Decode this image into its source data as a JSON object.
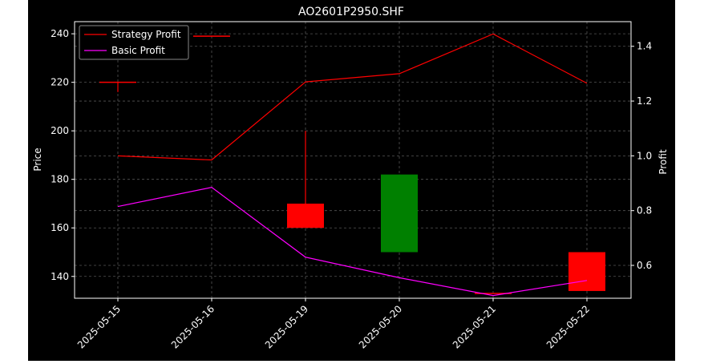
{
  "chart_data": {
    "type": "candlestick",
    "title": "AO2601P2950.SHF",
    "x_tick_labels": [
      "2025-05-15",
      "2025-05-16",
      "2025-05-19",
      "2025-05-20",
      "2025-05-21",
      "2025-05-22"
    ],
    "left_axis": {
      "label": "Price",
      "range": [
        131,
        245
      ],
      "ticks": [
        140,
        160,
        180,
        200,
        220,
        240
      ]
    },
    "right_axis": {
      "label": "Profit",
      "range": [
        0.48,
        1.49
      ],
      "ticks": [
        0.6,
        0.8,
        1.0,
        1.2,
        1.4
      ]
    },
    "grid": true,
    "legend_position": "upper-left",
    "candles": [
      {
        "x": "2025-05-15",
        "open": 220,
        "high": 220,
        "low": 216,
        "close": 220,
        "color": "#ff0000"
      },
      {
        "x": "2025-05-16",
        "open": 239,
        "high": 239,
        "low": 239,
        "close": 239,
        "color": "#ff0000"
      },
      {
        "x": "2025-05-19",
        "open": 170,
        "high": 200,
        "low": 160,
        "close": 160,
        "color": "#ff0000"
      },
      {
        "x": "2025-05-20",
        "open": 150,
        "high": 182,
        "low": 150,
        "close": 182,
        "color": "#008000"
      },
      {
        "x": "2025-05-21",
        "open": 133,
        "high": 133,
        "low": 133,
        "close": 133,
        "color": "#ff0000"
      },
      {
        "x": "2025-05-22",
        "open": 150,
        "high": 150,
        "low": 134,
        "close": 134,
        "color": "#ff0000"
      }
    ],
    "series": [
      {
        "name": "Strategy Profit",
        "color": "#ff0000",
        "axis": "right",
        "values": [
          1.0,
          0.985,
          1.27,
          1.3,
          1.445,
          1.265
        ]
      },
      {
        "name": "Basic Profit",
        "color": "#ff00ff",
        "axis": "right",
        "values": [
          0.815,
          0.885,
          0.63,
          0.555,
          0.49,
          0.545
        ]
      }
    ]
  }
}
